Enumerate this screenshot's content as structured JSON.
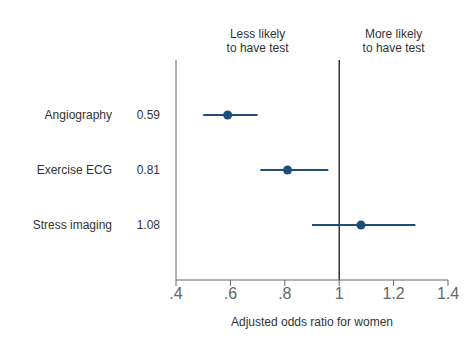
{
  "chart_data": {
    "type": "forest",
    "categories": [
      "Angiography",
      "Exercise ECG",
      "Stress imaging"
    ],
    "values": [
      0.59,
      0.81,
      1.08
    ],
    "value_labels": [
      "0.59",
      "0.81",
      "1.08"
    ],
    "ci_low": [
      0.5,
      0.71,
      0.9
    ],
    "ci_high": [
      0.7,
      0.96,
      1.28
    ],
    "ref_line": 1.0,
    "color": "#1f4e79",
    "xlabel": "Adjusted odds ratio for women",
    "xlim": [
      0.4,
      1.4
    ],
    "xticks": [
      {
        "value": 0.4,
        "label": ".4"
      },
      {
        "value": 0.6,
        "label": ".6"
      },
      {
        "value": 0.8,
        "label": ".8"
      },
      1,
      1.2,
      1.4
    ],
    "annotations": [
      "Less likely\nto have test",
      "More likely\nto have test"
    ]
  }
}
